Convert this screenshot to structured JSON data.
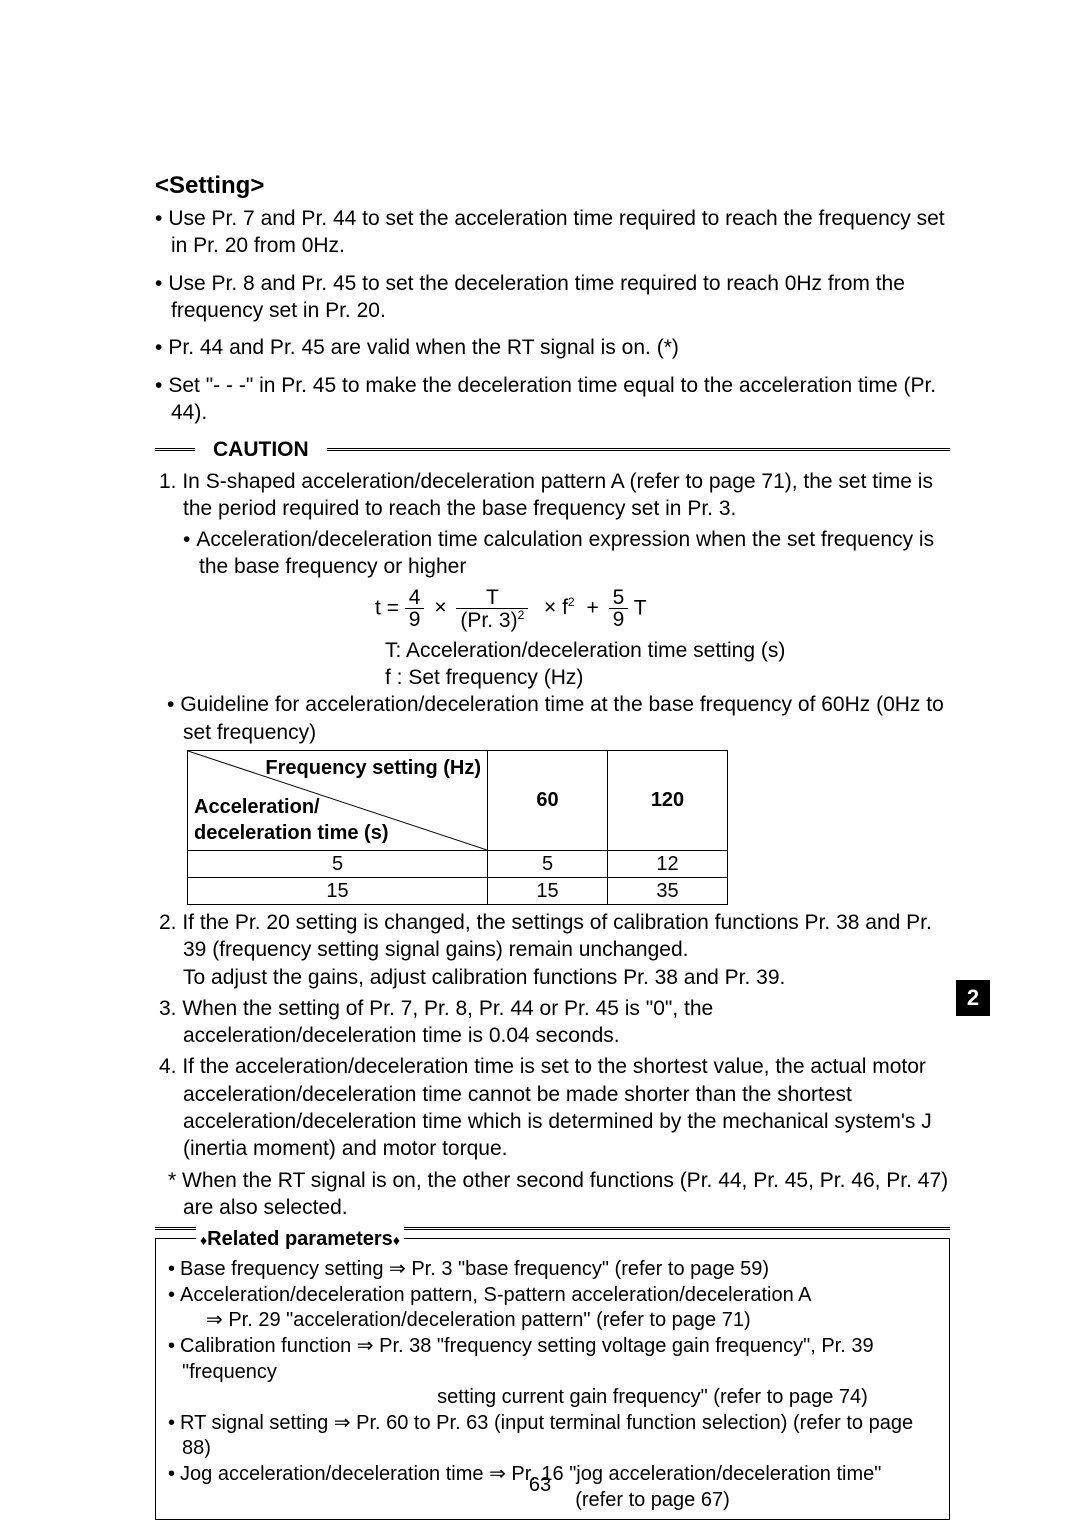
{
  "heading": "<Setting>",
  "bullets": [
    "Use Pr. 7 and Pr. 44 to set the acceleration time required to reach the frequency set in Pr. 20 from 0Hz.",
    "Use Pr. 8 and Pr. 45 to set the deceleration time required to reach 0Hz from the frequency set in Pr. 20.",
    "Pr. 44 and Pr. 45 are valid when the RT signal is on. (*)",
    "Set \"- - -\" in Pr. 45 to make the deceleration time equal to the acceleration time (Pr. 44)."
  ],
  "caution_label": "CAUTION",
  "caution_item1": "1. In S-shaped acceleration/deceleration pattern A (refer to page 71), the set time is the period required to reach the base frequency set in Pr. 3.",
  "caution_item1_sub": "Acceleration/deceleration time calculation expression when the set frequency is the base frequency or higher",
  "formula": {
    "lhs": "t =",
    "f1_num": "4",
    "f1_den": "9",
    "mul1": "×",
    "f2_num": "T",
    "f2_den": "(Pr. 3)",
    "f2_exp": "2",
    "mul2": "× f",
    "f_exp": "2",
    "plus": "+",
    "f3_num": "5",
    "f3_den": "9",
    "tail": " T"
  },
  "formula_notes": [
    "T: Acceleration/deceleration time setting (s)",
    "f : Set frequency (Hz)"
  ],
  "guideline_bullet": "Guideline for acceleration/deceleration time at the base frequency of 60Hz (0Hz to set frequency)",
  "table": {
    "diag_top": "Frequency setting (Hz)",
    "diag_bot": "Acceleration/\ndeceleration time (s)",
    "cols": [
      "60",
      "120"
    ],
    "rows": [
      {
        "label": "5",
        "cells": [
          "5",
          "12"
        ]
      },
      {
        "label": "15",
        "cells": [
          "15",
          "35"
        ]
      }
    ]
  },
  "caution_item2": "2. If the Pr. 20 setting is changed, the settings of calibration functions Pr. 38 and Pr. 39 (frequency setting signal gains) remain unchanged.\nTo adjust the gains, adjust calibration functions Pr. 38 and Pr. 39.",
  "caution_item3": "3. When the setting of Pr. 7, Pr. 8, Pr. 44 or Pr. 45 is \"0\", the acceleration/deceleration time is 0.04 seconds.",
  "caution_item4": "4. If the acceleration/deceleration time is set to the shortest value, the actual motor acceleration/deceleration time cannot be made shorter than the shortest acceleration/deceleration time which is determined by the mechanical system's J (inertia moment) and motor torque.",
  "footnote": "* When the RT signal is on, the other second functions (Pr. 44, Pr. 45, Pr. 46, Pr. 47) are also selected.",
  "side_tab": "2",
  "related": {
    "title": "Related parameters",
    "lines": [
      {
        "type": "rb",
        "text": "Base frequency setting ⇒ Pr. 3 \"base frequency\" (refer to page 59)"
      },
      {
        "type": "rb",
        "text": "Acceleration/deceleration pattern, S-pattern acceleration/deceleration A"
      },
      {
        "type": "cont",
        "text": "⇒ Pr. 29 \"acceleration/deceleration pattern\" (refer to page 71)"
      },
      {
        "type": "rb",
        "text": "Calibration function ⇒ Pr. 38 \"frequency setting voltage gain frequency\", Pr. 39 \"frequency"
      },
      {
        "type": "cont-c",
        "text": "setting current gain frequency\" (refer to page 74)"
      },
      {
        "type": "rb",
        "text": "RT signal setting ⇒ Pr. 60 to Pr. 63 (input terminal function selection) (refer to page 88)"
      },
      {
        "type": "rb",
        "text": "Jog acceleration/deceleration time ⇒ Pr. 16 \"jog acceleration/deceleration time\""
      },
      {
        "type": "cont-c",
        "text": "(refer to page 67)"
      }
    ]
  },
  "page_number": "63"
}
